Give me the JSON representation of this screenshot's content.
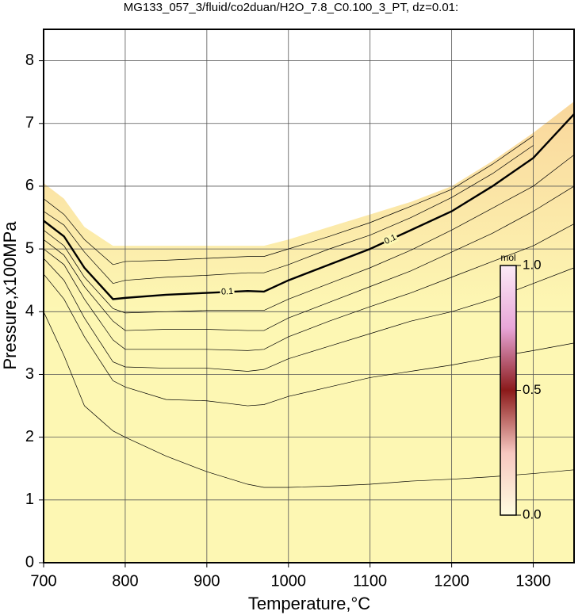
{
  "chart_data": {
    "type": "contour",
    "title": "MG133_057_3/fluid/co2duan/H2O_7.8_C0.100_3_PT, dz=0.01:",
    "x_label": "Temperature,°C",
    "y_label": "Pressure,x100MPa",
    "xlim": [
      700,
      1350
    ],
    "xticks": [
      700,
      800,
      900,
      1000,
      1100,
      1200,
      1300
    ],
    "ylim": [
      0,
      8.5
    ],
    "yticks": [
      0,
      1,
      2,
      3,
      4,
      5,
      6,
      7,
      8
    ],
    "grid": true,
    "x": [
      700,
      725,
      750,
      785,
      800,
      850,
      900,
      950,
      970,
      1000,
      1050,
      1100,
      1150,
      1200,
      1250,
      1300,
      1350
    ],
    "boundary": {
      "color": "#f9d79c",
      "values": [
        6.05,
        5.8,
        5.35,
        5.05,
        5.05,
        5.05,
        5.05,
        5.05,
        5.05,
        5.15,
        5.35,
        5.55,
        5.75,
        6.0,
        6.4,
        6.85,
        7.35
      ]
    },
    "fill_color": "#fdf7b3",
    "contour_label": "0.1",
    "series": [
      {
        "color": "#000000",
        "values": [
          4.0,
          3.3,
          2.5,
          2.1,
          2.0,
          1.7,
          1.45,
          1.25,
          1.2,
          1.2,
          1.22,
          1.25,
          1.3,
          1.33,
          1.37,
          1.42,
          1.48
        ]
      },
      {
        "color": "#000000",
        "values": [
          4.6,
          4.2,
          3.6,
          2.9,
          2.8,
          2.6,
          2.58,
          2.5,
          2.52,
          2.65,
          2.8,
          2.95,
          3.05,
          3.15,
          3.27,
          3.38,
          3.5
        ]
      },
      {
        "color": "#000000",
        "values": [
          4.85,
          4.5,
          3.9,
          3.2,
          3.12,
          3.1,
          3.1,
          3.05,
          3.08,
          3.25,
          3.45,
          3.65,
          3.85,
          4.0,
          4.2,
          4.45,
          4.7
        ]
      },
      {
        "color": "#000000",
        "values": [
          5.0,
          4.75,
          4.2,
          3.55,
          3.4,
          3.4,
          3.4,
          3.38,
          3.4,
          3.6,
          3.85,
          4.08,
          4.3,
          4.55,
          4.8,
          5.05,
          5.4
        ]
      },
      {
        "color": "#000000",
        "values": [
          5.15,
          4.9,
          4.4,
          3.85,
          3.7,
          3.72,
          3.72,
          3.7,
          3.7,
          3.9,
          4.15,
          4.4,
          4.65,
          4.95,
          5.25,
          5.6,
          6.0
        ]
      },
      {
        "color": "#000000",
        "values": [
          5.3,
          5.05,
          4.55,
          4.05,
          3.98,
          4.0,
          4.02,
          4.02,
          4.02,
          4.2,
          4.45,
          4.7,
          4.98,
          5.3,
          5.65,
          6.0,
          6.5
        ]
      },
      {
        "color": "#000000",
        "bold": true,
        "values": [
          5.45,
          5.2,
          4.7,
          4.2,
          4.22,
          4.27,
          4.3,
          4.33,
          4.32,
          4.5,
          4.75,
          5.0,
          5.3,
          5.6,
          6.0,
          6.45,
          7.15
        ]
      },
      {
        "color": "#000000",
        "values": [
          5.6,
          5.38,
          4.95,
          4.45,
          4.5,
          4.55,
          4.58,
          4.62,
          4.62,
          4.75,
          5.0,
          5.22,
          5.5,
          5.82,
          6.2,
          6.65,
          null
        ]
      },
      {
        "color": "#000000",
        "values": [
          5.8,
          5.55,
          5.15,
          4.75,
          4.8,
          4.82,
          4.85,
          4.88,
          4.88,
          5.0,
          5.2,
          5.42,
          5.68,
          5.95,
          6.35,
          6.8,
          null
        ]
      }
    ],
    "colorbar": {
      "label": "mol",
      "lim": [
        0,
        1
      ],
      "ticks": [
        {
          "value": 0,
          "label": "0.0"
        },
        {
          "value": 0.5,
          "label": "0.5"
        },
        {
          "value": 1,
          "label": "1.0"
        }
      ],
      "colors": [
        "#fffde0",
        "#f6c7c0",
        "#8b1a1a",
        "#e8a6d8",
        "#fbeaf6"
      ]
    }
  }
}
